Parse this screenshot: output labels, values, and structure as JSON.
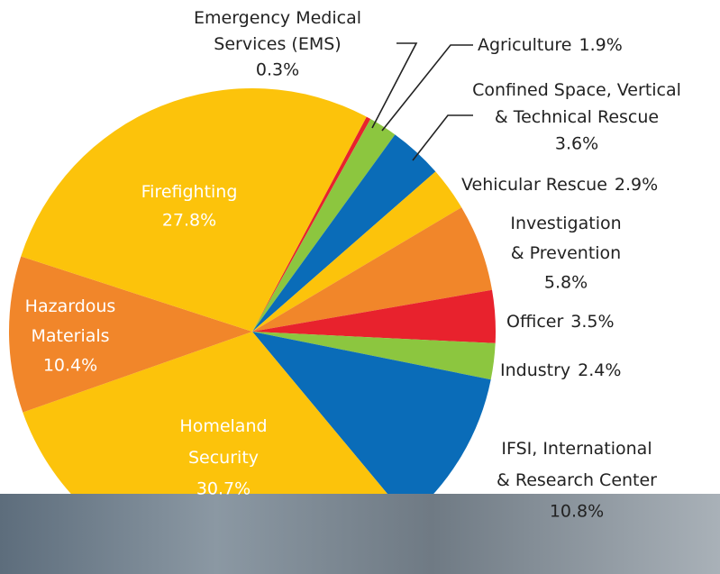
{
  "chart_data": {
    "type": "pie",
    "categories": [
      "Emergency Medical Services (EMS)",
      "Agriculture",
      "Confined Space, Vertical & Technical Rescue",
      "Vehicular Rescue",
      "Investigation & Prevention",
      "Officer",
      "Industry",
      "IFSI, International & Research Center",
      "Homeland Security",
      "Hazardous Materials",
      "Firefighting"
    ],
    "values": [
      0.3,
      1.9,
      3.6,
      2.9,
      5.8,
      3.5,
      2.4,
      10.8,
      30.7,
      10.4,
      27.8
    ],
    "value_labels": [
      "0.3%",
      "1.9%",
      "3.6%",
      "2.9%",
      "5.8%",
      "3.5%",
      "2.4%",
      "10.8%",
      "30.7%",
      "10.4%",
      "27.8%"
    ],
    "colors": [
      "#e8222d",
      "#8cc63f",
      "#0a6cb8",
      "#fcc30b",
      "#f1862a",
      "#e8222d",
      "#8cc63f",
      "#0a6cb8",
      "#fcc30b",
      "#f1862a",
      "#fcc30b"
    ]
  }
}
